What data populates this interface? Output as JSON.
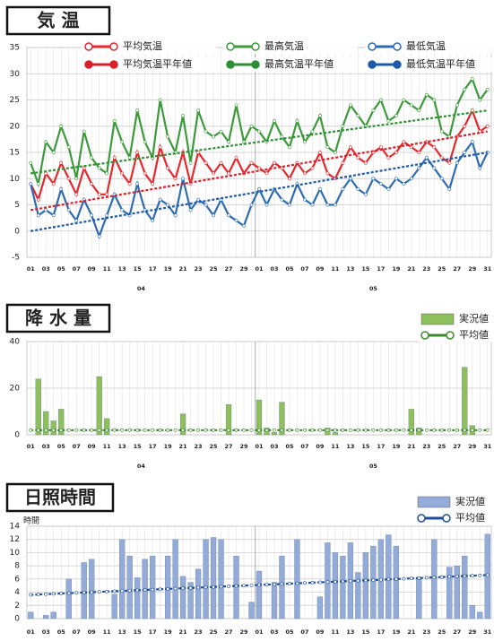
{
  "chart_data": [
    {
      "type": "line",
      "title": "気 温",
      "categories": [
        "01",
        null,
        "03",
        null,
        "05",
        null,
        "07",
        null,
        "09",
        null,
        "11",
        null,
        "13",
        null,
        "15",
        null,
        "17",
        null,
        "19",
        null,
        "21",
        null,
        "23",
        null,
        "25",
        null,
        "27",
        null,
        "29",
        null,
        "01",
        null,
        "03",
        null,
        "05",
        null,
        "07",
        null,
        "09",
        null,
        "11",
        null,
        "13",
        null,
        "15",
        null,
        "17",
        null,
        "19",
        null,
        "21",
        null,
        "23",
        null,
        "25",
        null,
        "27",
        null,
        "29",
        null,
        "31"
      ],
      "month_labels": [
        "04",
        "05"
      ],
      "ylim": [
        -5,
        35
      ],
      "yticks": [
        -5,
        0,
        5,
        10,
        15,
        20,
        25,
        30,
        35
      ],
      "grid": true,
      "series": [
        {
          "name": "平均気温",
          "color": "#e8262b",
          "style": "solid",
          "values": [
            9,
            6,
            11,
            9,
            13,
            10,
            7,
            12,
            9,
            7,
            7,
            14,
            11,
            9,
            15,
            11,
            9,
            16,
            12,
            10,
            15,
            9,
            15,
            13,
            11,
            13,
            11,
            14,
            11,
            13,
            12,
            11,
            13,
            12,
            10,
            13,
            11,
            12,
            15,
            11,
            10,
            13,
            16,
            14,
            13,
            15,
            16,
            14,
            15,
            17,
            16,
            15,
            17,
            16,
            14,
            13,
            18,
            20,
            23,
            19,
            20
          ]
        },
        {
          "name": "最高気温",
          "color": "#3c9a3a",
          "style": "solid",
          "values": [
            13,
            9,
            17,
            15,
            20,
            16,
            10,
            19,
            14,
            12,
            11,
            21,
            17,
            14,
            23,
            17,
            14,
            25,
            18,
            15,
            22,
            13,
            23,
            19,
            18,
            19,
            17,
            24,
            17,
            20,
            19,
            17,
            21,
            18,
            16,
            21,
            17,
            19,
            22,
            16,
            15,
            20,
            24,
            22,
            20,
            23,
            25,
            21,
            22,
            25,
            24,
            23,
            26,
            25,
            19,
            18,
            24,
            27,
            29,
            25,
            27
          ]
        },
        {
          "name": "最低気温",
          "color": "#2e6cb2",
          "style": "solid",
          "values": [
            9,
            3,
            4,
            3,
            8,
            4,
            2,
            6,
            3,
            -1,
            3,
            7,
            4,
            3,
            9,
            4,
            2,
            6,
            5,
            3,
            10,
            4,
            6,
            5,
            3,
            6,
            3,
            2,
            1,
            5,
            8,
            5,
            8,
            6,
            5,
            9,
            6,
            5,
            8,
            5,
            5,
            8,
            10,
            8,
            7,
            10,
            9,
            8,
            10,
            9,
            10,
            12,
            14,
            12,
            10,
            8,
            13,
            15,
            17,
            12,
            15
          ]
        },
        {
          "name": "平均気温平年値",
          "color": "#d8202a",
          "style": "dashed",
          "values": [
            4,
            4.25,
            4.5,
            4.75,
            5,
            5.25,
            5.5,
            5.75,
            6,
            6.25,
            6.5,
            6.75,
            7,
            7.25,
            7.5,
            7.75,
            8,
            8.25,
            8.5,
            8.75,
            9,
            9.25,
            9.5,
            9.75,
            10,
            10.25,
            10.5,
            10.75,
            11,
            11.25,
            11.5,
            11.75,
            12,
            12.25,
            12.5,
            12.75,
            13,
            13.25,
            13.5,
            13.75,
            14,
            14.25,
            14.5,
            14.75,
            15,
            15.25,
            15.5,
            15.75,
            16,
            16.25,
            16.5,
            16.75,
            17,
            17.25,
            17.5,
            17.75,
            18,
            18.25,
            18.5,
            18.75,
            19
          ]
        },
        {
          "name": "最高気温平年値",
          "color": "#2f8f34",
          "style": "dashed",
          "values": [
            11,
            11.2,
            11.4,
            11.6,
            11.8,
            12,
            12.2,
            12.4,
            12.6,
            12.8,
            13,
            13.2,
            13.4,
            13.6,
            13.8,
            14,
            14.2,
            14.4,
            14.6,
            14.8,
            15,
            15.2,
            15.4,
            15.6,
            15.8,
            16,
            16.2,
            16.4,
            16.6,
            16.8,
            17,
            17.2,
            17.4,
            17.6,
            17.8,
            18,
            18.2,
            18.4,
            18.6,
            18.8,
            19,
            19.2,
            19.4,
            19.6,
            19.8,
            20,
            20.2,
            20.4,
            20.6,
            20.8,
            21,
            21.2,
            21.4,
            21.6,
            21.8,
            22,
            22.2,
            22.4,
            22.6,
            22.8,
            23
          ]
        },
        {
          "name": "最低気温平年値",
          "color": "#1f5aa8",
          "style": "dashed",
          "values": [
            0,
            0.25,
            0.5,
            0.75,
            1,
            1.25,
            1.5,
            1.75,
            2,
            2.25,
            2.5,
            2.75,
            3,
            3.25,
            3.5,
            3.75,
            4,
            4.25,
            4.5,
            4.75,
            5,
            5.25,
            5.5,
            5.75,
            6,
            6.25,
            6.5,
            6.75,
            7,
            7.25,
            7.5,
            7.75,
            8,
            8.25,
            8.5,
            8.75,
            9,
            9.25,
            9.5,
            9.75,
            10,
            10.25,
            10.5,
            10.75,
            11,
            11.25,
            11.5,
            11.75,
            12,
            12.25,
            12.5,
            12.75,
            13,
            13.25,
            13.5,
            13.75,
            14,
            14.25,
            14.5,
            14.75,
            15
          ]
        }
      ]
    },
    {
      "type": "bar",
      "title": "降 水 量",
      "categories": [
        "01",
        null,
        "03",
        null,
        "05",
        null,
        "07",
        null,
        "09",
        null,
        "11",
        null,
        "13",
        null,
        "15",
        null,
        "17",
        null,
        "19",
        null,
        "21",
        null,
        "23",
        null,
        "25",
        null,
        "27",
        null,
        "29",
        null,
        "01",
        null,
        "03",
        null,
        "05",
        null,
        "07",
        null,
        "09",
        null,
        "11",
        null,
        "13",
        null,
        "15",
        null,
        "17",
        null,
        "19",
        null,
        "21",
        null,
        "23",
        null,
        "25",
        null,
        "27",
        null,
        "29",
        null,
        "31"
      ],
      "month_labels": [
        "04",
        "05"
      ],
      "ylim": [
        0,
        40
      ],
      "yticks": [
        0,
        20,
        40
      ],
      "grid": true,
      "series": [
        {
          "name": "実況値",
          "color": "#8dbf5b",
          "type": "bar",
          "values": [
            0,
            24,
            10,
            6,
            11,
            0,
            0,
            0,
            0,
            25,
            7,
            0,
            0,
            0,
            0,
            0,
            0,
            0,
            0,
            0,
            9,
            0,
            0,
            0,
            0,
            0,
            13,
            0,
            0,
            0,
            15,
            3,
            1,
            14,
            0,
            0,
            0,
            0,
            0,
            3,
            1,
            0,
            0,
            0,
            0,
            0,
            0,
            0,
            0,
            0,
            11,
            3,
            0,
            0,
            0,
            0,
            0,
            29,
            4,
            0,
            0
          ]
        },
        {
          "name": "平均値",
          "color": "#3c8a2e",
          "type": "line",
          "values": [
            2,
            2,
            2,
            2,
            2,
            2,
            2,
            2,
            2,
            2,
            2,
            2,
            2,
            2,
            2,
            2,
            2,
            2,
            2,
            2,
            2,
            2,
            2,
            2,
            2,
            2,
            2,
            2,
            2,
            2,
            2,
            2,
            2,
            2,
            2,
            2,
            2,
            2,
            2,
            2,
            2,
            2,
            2,
            2,
            2,
            2,
            2,
            2,
            2,
            2,
            2,
            2,
            2,
            2,
            2,
            2,
            2,
            2,
            2,
            2,
            2
          ]
        }
      ]
    },
    {
      "type": "bar",
      "title": "日照時間",
      "ylabel": "時間",
      "categories": [
        "01",
        null,
        "03",
        null,
        "05",
        null,
        "07",
        null,
        "09",
        null,
        "11",
        null,
        "13",
        null,
        "15",
        null,
        "17",
        null,
        "19",
        null,
        "21",
        null,
        "23",
        null,
        "25",
        null,
        "27",
        null,
        "29",
        null,
        "01",
        null,
        "03",
        null,
        "05",
        null,
        "07",
        null,
        "09",
        null,
        "11",
        null,
        "13",
        null,
        "15",
        null,
        "17",
        null,
        "19",
        null,
        "21",
        null,
        "23",
        null,
        "25",
        null,
        "27",
        null,
        "29",
        null,
        "31"
      ],
      "ylim": [
        0,
        14
      ],
      "yticks": [
        0,
        2,
        4,
        6,
        8,
        10,
        12,
        14
      ],
      "grid": true,
      "series": [
        {
          "name": "実況値",
          "color": "#93abd8",
          "type": "bar",
          "values": [
            1,
            0,
            0.5,
            1,
            0,
            6,
            0,
            8.5,
            9,
            0,
            0,
            3.7,
            12,
            9.5,
            6.2,
            9,
            9.5,
            0,
            9.5,
            12,
            6.4,
            5.5,
            7.5,
            12,
            12.3,
            12,
            0,
            9.5,
            0,
            2.5,
            7.2,
            0,
            5.5,
            9.5,
            0,
            12,
            0,
            0,
            3.3,
            11.5,
            10,
            9.5,
            11.5,
            7,
            10,
            11,
            12,
            12.7,
            11,
            0,
            0,
            6,
            0,
            12,
            0,
            7.8,
            8,
            9.5,
            2,
            1,
            12.8
          ]
        },
        {
          "name": "平均値",
          "color": "#1f4f99",
          "type": "line",
          "values": [
            3.6,
            3.65,
            3.7,
            3.75,
            3.8,
            3.85,
            3.9,
            3.95,
            4,
            4.05,
            4.1,
            4.15,
            4.2,
            4.25,
            4.3,
            4.35,
            4.4,
            4.45,
            4.5,
            4.55,
            4.6,
            4.65,
            4.7,
            4.75,
            4.8,
            4.85,
            4.9,
            4.95,
            5,
            5.05,
            5.1,
            5.15,
            5.2,
            5.25,
            5.3,
            5.35,
            5.4,
            5.45,
            5.5,
            5.55,
            5.6,
            5.65,
            5.7,
            5.75,
            5.8,
            5.85,
            5.9,
            5.95,
            6,
            6.05,
            6.1,
            6.15,
            6.2,
            6.25,
            6.3,
            6.35,
            6.4,
            6.45,
            6.5,
            6.55,
            6.6
          ]
        }
      ]
    }
  ]
}
